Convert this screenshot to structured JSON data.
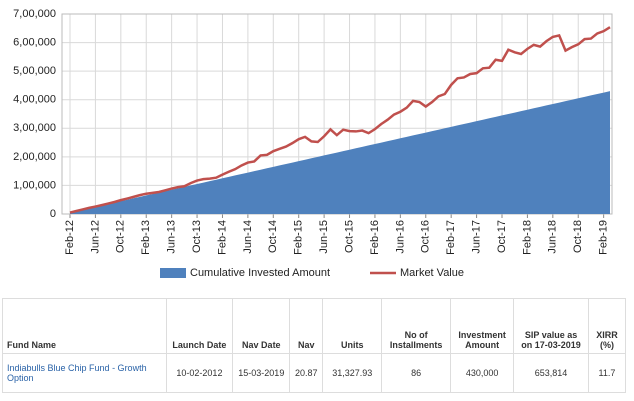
{
  "chart_data": {
    "type": "area-line",
    "categories": [
      "Feb-12",
      null,
      null,
      null,
      "Jun-12",
      null,
      null,
      null,
      "Oct-12",
      null,
      null,
      null,
      "Feb-13",
      null,
      null,
      null,
      "Jun-13",
      null,
      null,
      null,
      "Oct-13",
      null,
      null,
      null,
      "Feb-14",
      null,
      null,
      null,
      "Jun-14",
      null,
      null,
      null,
      "Oct-14",
      null,
      null,
      null,
      "Feb-15",
      null,
      null,
      null,
      "Jun-15",
      null,
      null,
      null,
      "Oct-15",
      null,
      null,
      null,
      "Feb-16",
      null,
      null,
      null,
      "Jun-16",
      null,
      null,
      null,
      "Oct-16",
      null,
      null,
      null,
      "Feb-17",
      null,
      null,
      null,
      "Jun-17",
      null,
      null,
      null,
      "Oct-17",
      null,
      null,
      null,
      "Feb-18",
      null,
      null,
      null,
      "Jun-18",
      null,
      null,
      null,
      "Oct-18",
      null,
      null,
      null,
      "Feb-19",
      null
    ],
    "series": [
      {
        "name": "Cumulative Invested Amount",
        "color": "#4f81bd",
        "values": [
          5000,
          10000,
          15000,
          20000,
          25000,
          30000,
          35000,
          40000,
          45000,
          50000,
          55000,
          60000,
          65000,
          70000,
          75000,
          80000,
          85000,
          90000,
          95000,
          100000,
          105000,
          110000,
          115000,
          120000,
          125000,
          130000,
          135000,
          140000,
          145000,
          150000,
          155000,
          160000,
          165000,
          170000,
          175000,
          180000,
          185000,
          190000,
          195000,
          200000,
          205000,
          210000,
          215000,
          220000,
          225000,
          230000,
          235000,
          240000,
          245000,
          250000,
          255000,
          260000,
          265000,
          270000,
          275000,
          280000,
          285000,
          290000,
          295000,
          300000,
          305000,
          310000,
          315000,
          320000,
          325000,
          330000,
          335000,
          340000,
          345000,
          350000,
          355000,
          360000,
          365000,
          370000,
          375000,
          380000,
          385000,
          390000,
          395000,
          400000,
          405000,
          410000,
          415000,
          420000,
          425000,
          430000
        ]
      },
      {
        "name": "Market Value",
        "color": "#c0504d",
        "values": [
          5000,
          10500,
          16000,
          21500,
          26000,
          31000,
          36500,
          42000,
          48500,
          54000,
          60000,
          66000,
          71000,
          74000,
          77000,
          83000,
          89000,
          94000,
          97000,
          108000,
          117000,
          122000,
          124000,
          127000,
          138000,
          148000,
          157000,
          170000,
          180000,
          184000,
          205000,
          207000,
          220000,
          228000,
          236000,
          248000,
          262000,
          270000,
          254000,
          252000,
          272000,
          296000,
          276000,
          295000,
          290000,
          289000,
          292000,
          283000,
          297000,
          315000,
          330000,
          348000,
          358000,
          372000,
          396000,
          392000,
          376000,
          392000,
          412000,
          420000,
          452000,
          475000,
          478000,
          490000,
          493000,
          510000,
          512000,
          540000,
          536000,
          575000,
          566000,
          560000,
          578000,
          592000,
          586000,
          605000,
          620000,
          625000,
          572000,
          584000,
          594000,
          612000,
          614000,
          632000,
          640000,
          653814
        ]
      }
    ],
    "ylim": [
      0,
      700000
    ],
    "yticks": [
      0,
      {
        "value": 100000,
        "label": "1,00,000"
      },
      {
        "value": 200000,
        "label": "2,00,000"
      },
      {
        "value": 300000,
        "label": "3,00,000"
      },
      {
        "value": 400000,
        "label": "4,00,000"
      },
      {
        "value": 500000,
        "label": "5,00,000"
      },
      {
        "value": 600000,
        "label": "6,00,000"
      },
      {
        "value": 700000,
        "label": "7,00,000"
      }
    ],
    "grid": true,
    "legend": "bottom"
  },
  "table": {
    "header": [
      "Fund Name",
      "Launch Date",
      "Nav Date",
      "Nav",
      "Units",
      "No of Installments",
      "Investment Amount",
      "SIP value as on 17-03-2019",
      "XIRR (%)"
    ],
    "rows": [
      [
        "Indiabulls Blue Chip Fund - Growth Option",
        "10-02-2012",
        "15-03-2019",
        "20.87",
        "31,327.93",
        "86",
        "430,000",
        "653,814",
        "11.7"
      ]
    ]
  }
}
